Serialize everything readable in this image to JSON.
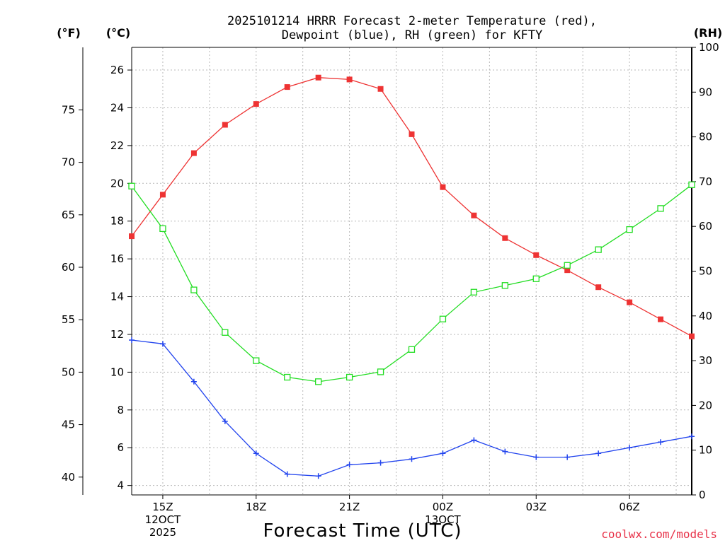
{
  "chart_data": {
    "type": "line",
    "title_lines": [
      "2025101214 HRRR Forecast 2-meter Temperature (red),",
      "Dewpoint (blue), RH (green) for KFTY"
    ],
    "xlabel": "Forecast Time (UTC)",
    "credit": "coolwx.com/models",
    "axis_labels": {
      "fahrenheit": "(°F)",
      "celsius": "(°C)",
      "rh": "(RH)"
    },
    "x_hours": [
      14,
      15,
      16,
      17,
      18,
      19,
      20,
      21,
      22,
      23,
      24,
      25,
      26,
      27,
      28,
      29,
      30,
      31,
      32
    ],
    "x_ticks": [
      {
        "hour": 15,
        "lines": [
          "15Z",
          "12OCT",
          "2025"
        ]
      },
      {
        "hour": 18,
        "lines": [
          "18Z"
        ]
      },
      {
        "hour": 21,
        "lines": [
          "21Z"
        ]
      },
      {
        "hour": 24,
        "lines": [
          "00Z",
          "13OCT"
        ]
      },
      {
        "hour": 27,
        "lines": [
          "03Z"
        ]
      },
      {
        "hour": 30,
        "lines": [
          "06Z"
        ]
      }
    ],
    "xlim": [
      14,
      32
    ],
    "celsius_ylim": [
      3.5,
      27.2
    ],
    "celsius_ticks": [
      4,
      6,
      8,
      10,
      12,
      14,
      16,
      18,
      20,
      22,
      24,
      26
    ],
    "fahrenheit_ticks": [
      40,
      45,
      50,
      55,
      60,
      65,
      70,
      75
    ],
    "rh_ylim": [
      0,
      100
    ],
    "rh_ticks": [
      0,
      10,
      20,
      30,
      40,
      50,
      60,
      70,
      80,
      90,
      100
    ],
    "series": [
      {
        "name": "Temperature",
        "unit": "°C",
        "color": "#ee3333",
        "marker": "filled-square",
        "values": [
          17.2,
          19.4,
          21.6,
          23.1,
          24.2,
          25.1,
          25.6,
          25.5,
          25.0,
          22.6,
          19.8,
          18.3,
          17.1,
          16.2,
          15.4,
          14.5,
          13.7,
          12.8,
          11.9
        ]
      },
      {
        "name": "Dewpoint",
        "unit": "°C",
        "color": "#2244ee",
        "marker": "plus",
        "values": [
          11.7,
          11.5,
          9.5,
          7.4,
          5.7,
          4.6,
          4.5,
          5.1,
          5.2,
          5.4,
          5.7,
          6.4,
          5.8,
          5.5,
          5.5,
          5.7,
          6.0,
          6.3,
          6.6
        ]
      },
      {
        "name": "RH",
        "unit": "%",
        "color": "#22dd22",
        "marker": "open-square",
        "values": [
          69.0,
          59.5,
          45.8,
          36.3,
          30.0,
          26.3,
          25.3,
          26.3,
          27.5,
          32.5,
          39.3,
          45.3,
          46.8,
          48.3,
          51.3,
          54.8,
          59.3,
          64.0,
          69.3
        ]
      }
    ]
  }
}
